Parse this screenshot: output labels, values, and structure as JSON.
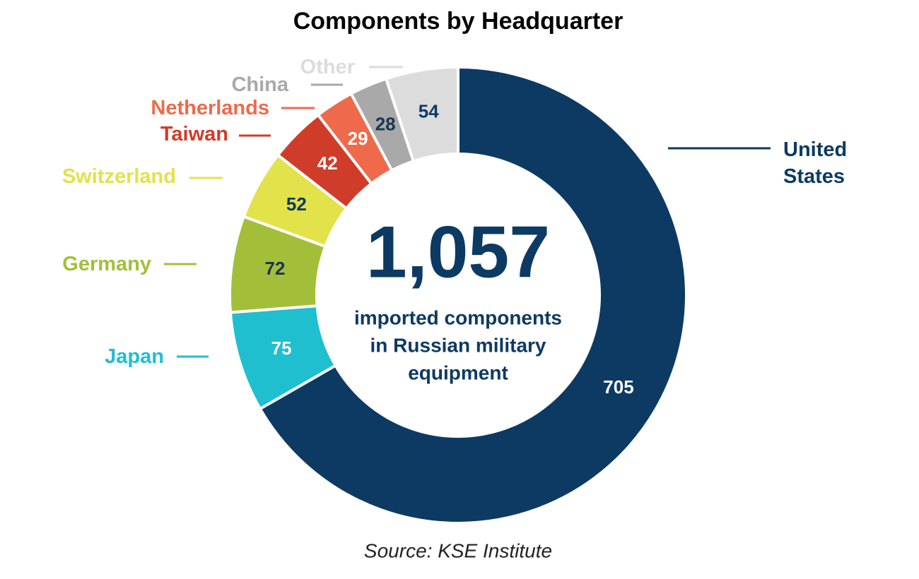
{
  "chart_data": {
    "type": "donut",
    "title": "Components by Headquarter",
    "source": "Source: KSE Institute",
    "categories": [
      "United States",
      "Japan",
      "Germany",
      "Switzerland",
      "Taiwan",
      "Netherlands",
      "China",
      "Other"
    ],
    "values": [
      705,
      75,
      72,
      52,
      42,
      29,
      28,
      54
    ],
    "colors": [
      "#0d3a63",
      "#1fbfcf",
      "#a3bf3a",
      "#e2e24a",
      "#d03c2a",
      "#ee6a4a",
      "#a9a9a9",
      "#dcdcdc"
    ],
    "total": {
      "value": 1057,
      "label": "1,057"
    },
    "center_text": [
      "imported components",
      "in Russian military",
      "equipment"
    ]
  }
}
